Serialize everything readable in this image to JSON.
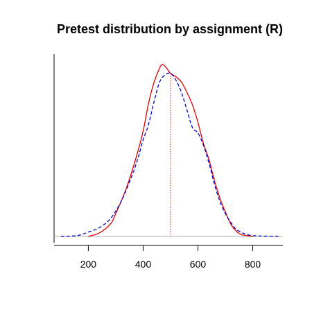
{
  "chart_data": {
    "type": "line",
    "title": "Pretest distribution by assignment (R)",
    "xlabel": "",
    "ylabel": "",
    "xlim": [
      75,
      910
    ],
    "ylim": [
      0,
      1
    ],
    "x_ticks": [
      200,
      400,
      600,
      800
    ],
    "grid": false,
    "legend": "none",
    "reference_line": {
      "x": 500,
      "style": "dotted",
      "color": "#cc0000"
    },
    "baseline": {
      "y": 0,
      "color": "#b0b0b0"
    },
    "series": [
      {
        "style": "solid",
        "color": "#dd0000",
        "x": [
          200,
          240,
          280,
          300,
          340,
          380,
          400,
          420,
          440,
          460,
          470,
          480,
          490,
          500,
          520,
          540,
          560,
          580,
          600,
          620,
          640,
          660,
          680,
          700,
          720,
          740,
          760,
          800
        ],
        "y": [
          0,
          0.02,
          0.07,
          0.13,
          0.28,
          0.48,
          0.6,
          0.76,
          0.88,
          0.96,
          0.98,
          0.97,
          0.95,
          0.93,
          0.91,
          0.88,
          0.82,
          0.75,
          0.65,
          0.53,
          0.44,
          0.32,
          0.22,
          0.14,
          0.07,
          0.03,
          0.01,
          0
        ]
      },
      {
        "style": "dashed",
        "color": "#0000cc",
        "x": [
          100,
          160,
          200,
          240,
          280,
          320,
          360,
          380,
          400,
          420,
          440,
          460,
          480,
          500,
          520,
          540,
          560,
          580,
          600,
          620,
          640,
          660,
          680,
          700,
          720,
          740,
          780,
          820,
          900
        ],
        "y": [
          0,
          0.005,
          0.025,
          0.05,
          0.1,
          0.2,
          0.35,
          0.44,
          0.55,
          0.64,
          0.77,
          0.88,
          0.92,
          0.93,
          0.89,
          0.82,
          0.72,
          0.62,
          0.59,
          0.52,
          0.42,
          0.3,
          0.2,
          0.13,
          0.08,
          0.04,
          0.01,
          0.003,
          0
        ]
      }
    ]
  }
}
